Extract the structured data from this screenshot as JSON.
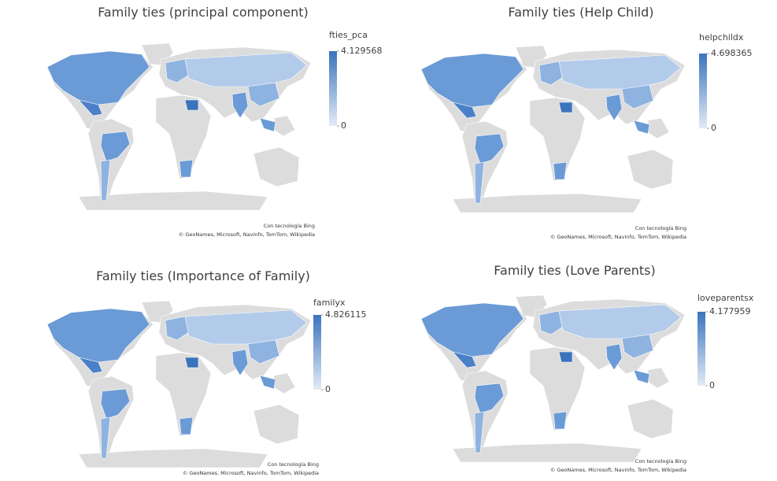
{
  "maps": [
    {
      "title": "Family ties (principal component)",
      "legend": {
        "title": "fties_pca",
        "max": 4.129568,
        "min": 0
      },
      "attribution": [
        "Con tecnología Bing",
        "© GeoNames, Microsoft, Navinfo, TomTom, Wikipedia"
      ]
    },
    {
      "title": "Family ties (Help Child)",
      "legend": {
        "title": "helpchildx",
        "max": 4.698365,
        "min": 0
      },
      "attribution": [
        "Con tecnología Bing",
        "© GeoNames, Microsoft, Navinfo, TomTom, Wikipedia"
      ]
    },
    {
      "title": "Family ties (Importance of Family)",
      "legend": {
        "title": "familyx",
        "max": 4.826115,
        "min": 0
      },
      "attribution": [
        "Con tecnología Bing",
        "© GeoNames, Microsoft, Navinfo, TomTom, Wikipedia"
      ]
    },
    {
      "title": "Family ties (Love Parents)",
      "legend": {
        "title": "loveparentsx",
        "max": 4.177959,
        "min": 0
      },
      "attribution": [
        "Con tecnología Bing",
        "© GeoNames, Microsoft, Navinfo, TomTom, Wikipedia"
      ]
    }
  ]
}
